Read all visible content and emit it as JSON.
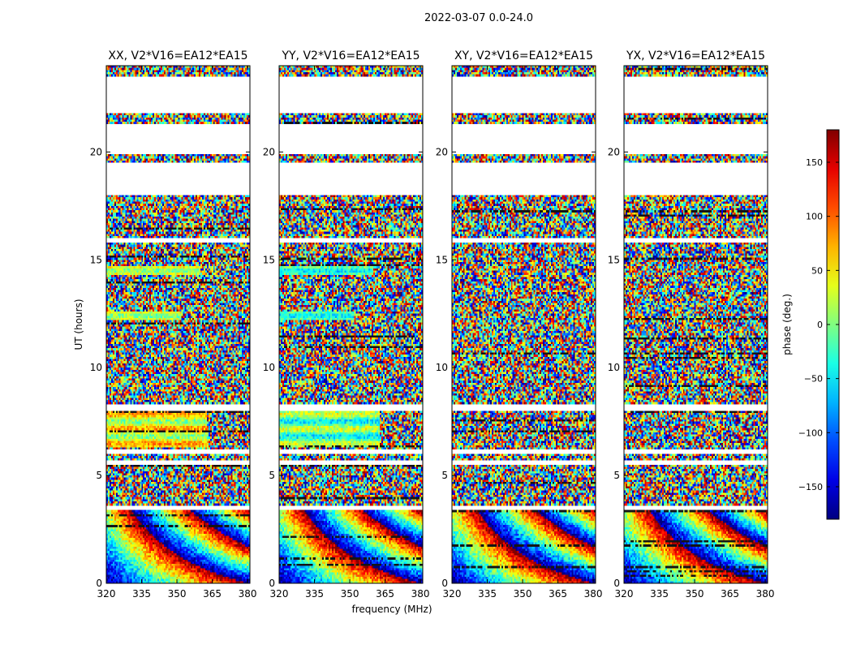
{
  "figure": {
    "suptitle": "2022-03-07 0.0-24.0"
  },
  "chart_data": {
    "type": "heatmap",
    "suptitle": "2022-03-07 0.0-24.0",
    "xlabel": "frequency (MHz)",
    "ylabel": "UT (hours)",
    "xlim": [
      320,
      381
    ],
    "ylim": [
      0,
      24
    ],
    "x_ticks": [
      320,
      335,
      350,
      365,
      380
    ],
    "y_ticks": [
      0,
      5,
      10,
      15,
      20
    ],
    "panels": [
      {
        "title": "XX, V2*V16=EA12*EA15",
        "polarization": "XX"
      },
      {
        "title": "YY, V2*V16=EA12*EA15",
        "polarization": "YY"
      },
      {
        "title": "XY, V2*V16=EA12*EA15",
        "polarization": "XY"
      },
      {
        "title": "YX, V2*V16=EA12*EA15",
        "polarization": "YX"
      }
    ],
    "colorbar": {
      "label": "phase (deg.)",
      "range": [
        -180,
        180
      ],
      "ticks": [
        -150,
        -100,
        -50,
        0,
        50,
        100,
        150
      ],
      "colormap": "jet",
      "colors": [
        "#00007f",
        "#0000ff",
        "#007fff",
        "#00ffff",
        "#7fff7f",
        "#ffff00",
        "#ff7f00",
        "#ff0000",
        "#7f0000"
      ]
    },
    "data_gaps_ut_hours": [
      [
        18.0,
        19.5
      ],
      [
        19.9,
        21.3
      ],
      [
        21.8,
        23.5
      ],
      [
        15.8,
        16.0
      ],
      [
        8.05,
        8.3
      ],
      [
        6.0,
        6.2
      ],
      [
        5.5,
        5.7
      ],
      [
        3.4,
        3.6
      ]
    ],
    "coherent_regions": [
      {
        "panels": [
          "XX",
          "YY"
        ],
        "ut": [
          6.3,
          8.0
        ],
        "freq": [
          320,
          363
        ]
      },
      {
        "panels": [
          "XX",
          "YY"
        ],
        "ut": [
          12.2,
          12.6
        ],
        "freq": [
          320,
          352
        ]
      },
      {
        "panels": [
          "XX",
          "YY"
        ],
        "ut": [
          14.3,
          14.7
        ],
        "freq": [
          320,
          360
        ]
      }
    ]
  }
}
